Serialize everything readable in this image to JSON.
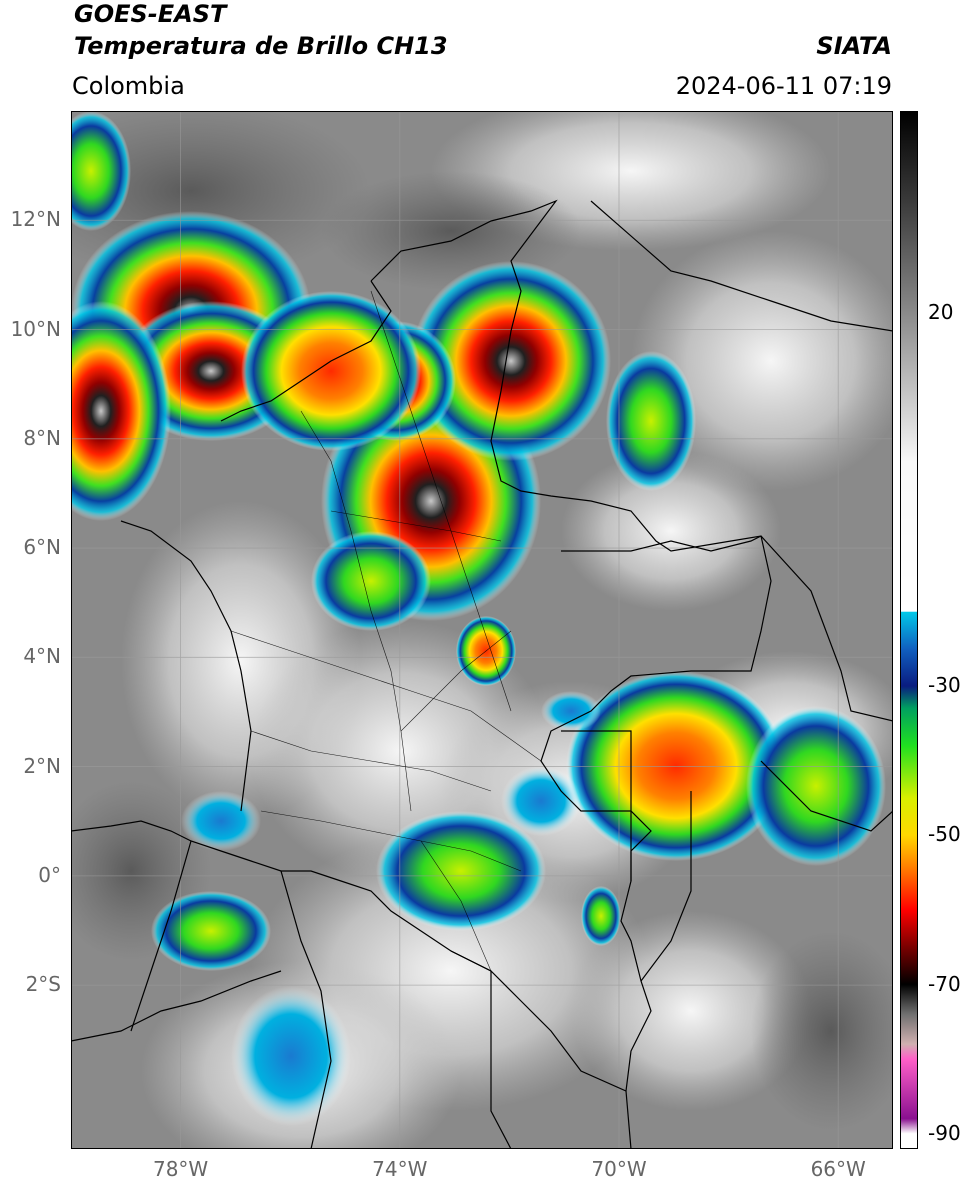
{
  "header": {
    "title_line1": "GOES-EAST",
    "title_line2": "Temperatura de Brillo CH13",
    "organization": "SIATA",
    "region": "Colombia",
    "datetime": "2024-06-11 07:19"
  },
  "map": {
    "lat_labels": [
      "12°N",
      "10°N",
      "8°N",
      "6°N",
      "4°N",
      "2°N",
      "0°",
      "2°S"
    ],
    "lon_labels": [
      "78°W",
      "74°W",
      "70°W",
      "66°W"
    ],
    "lat_values": [
      12,
      10,
      8,
      6,
      4,
      2,
      0,
      -2
    ],
    "lon_values": [
      -78,
      -74,
      -70,
      -66
    ],
    "extent": {
      "lon_min": -80,
      "lon_max": -65,
      "lat_min": -5,
      "lat_max": 14
    }
  },
  "colorbar": {
    "tick_labels": [
      "20",
      "-30",
      "-50",
      "-70",
      "-90"
    ],
    "tick_values": [
      20,
      -30,
      -50,
      -70,
      -90
    ],
    "range": [
      -92,
      47
    ],
    "stops": [
      {
        "v": 47,
        "c": "#000000"
      },
      {
        "v": 35,
        "c": "#3a3a3a"
      },
      {
        "v": 20,
        "c": "#8a8a8a"
      },
      {
        "v": 0,
        "c": "#f8f8f8"
      },
      {
        "v": -20,
        "c": "#ffffff"
      },
      {
        "v": -20.1,
        "c": "#00c8e8"
      },
      {
        "v": -25,
        "c": "#1060c0"
      },
      {
        "v": -30,
        "c": "#0a1c80"
      },
      {
        "v": -33,
        "c": "#00a060"
      },
      {
        "v": -38,
        "c": "#20e020"
      },
      {
        "v": -45,
        "c": "#d8f000"
      },
      {
        "v": -50,
        "c": "#ffd800"
      },
      {
        "v": -55,
        "c": "#ff7000"
      },
      {
        "v": -60,
        "c": "#ff0000"
      },
      {
        "v": -65,
        "c": "#7a0000"
      },
      {
        "v": -70,
        "c": "#000000"
      },
      {
        "v": -74,
        "c": "#707070"
      },
      {
        "v": -78,
        "c": "#d0b0b0"
      },
      {
        "v": -80,
        "c": "#ff60c8"
      },
      {
        "v": -88,
        "c": "#8a1090"
      },
      {
        "v": -90,
        "c": "#ffffff"
      },
      {
        "v": -92,
        "c": "#ffffff"
      }
    ]
  }
}
